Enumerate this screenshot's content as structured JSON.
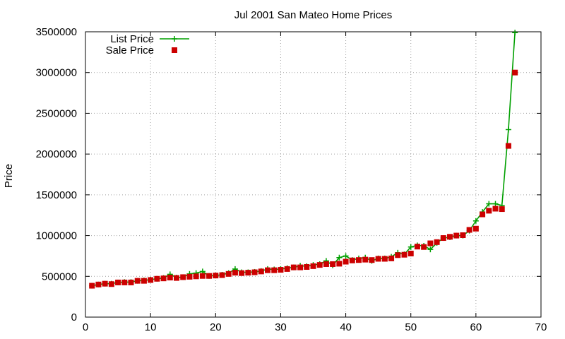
{
  "chart_data": {
    "type": "line",
    "title": "Jul 2001 San Mateo Home Prices",
    "xlabel": "",
    "ylabel": "Price",
    "xlim": [
      0,
      70
    ],
    "ylim": [
      0,
      3500000
    ],
    "x_ticks": [
      0,
      10,
      20,
      30,
      40,
      50,
      60,
      70
    ],
    "y_ticks": [
      0,
      500000,
      1000000,
      1500000,
      2000000,
      2500000,
      3000000,
      3500000
    ],
    "grid": true,
    "legend_position": "top-left",
    "series": [
      {
        "name": "List Price",
        "style": "line-plus",
        "color": "#00a000",
        "values": [
          [
            1,
            385000
          ],
          [
            2,
            400000
          ],
          [
            3,
            410000
          ],
          [
            4,
            410000
          ],
          [
            5,
            425000
          ],
          [
            6,
            430000
          ],
          [
            7,
            430000
          ],
          [
            8,
            445000
          ],
          [
            9,
            450000
          ],
          [
            10,
            460000
          ],
          [
            11,
            470000
          ],
          [
            12,
            480000
          ],
          [
            13,
            525000
          ],
          [
            14,
            485000
          ],
          [
            15,
            490000
          ],
          [
            16,
            530000
          ],
          [
            17,
            540000
          ],
          [
            18,
            560000
          ],
          [
            19,
            505000
          ],
          [
            20,
            510000
          ],
          [
            21,
            520000
          ],
          [
            22,
            540000
          ],
          [
            23,
            590000
          ],
          [
            24,
            550000
          ],
          [
            25,
            550000
          ],
          [
            26,
            555000
          ],
          [
            27,
            565000
          ],
          [
            28,
            590000
          ],
          [
            29,
            585000
          ],
          [
            30,
            590000
          ],
          [
            31,
            600000
          ],
          [
            32,
            610000
          ],
          [
            33,
            630000
          ],
          [
            34,
            625000
          ],
          [
            35,
            640000
          ],
          [
            36,
            650000
          ],
          [
            37,
            690000
          ],
          [
            38,
            635000
          ],
          [
            39,
            730000
          ],
          [
            40,
            750000
          ],
          [
            41,
            700000
          ],
          [
            42,
            720000
          ],
          [
            43,
            730000
          ],
          [
            44,
            690000
          ],
          [
            45,
            720000
          ],
          [
            46,
            720000
          ],
          [
            47,
            740000
          ],
          [
            48,
            790000
          ],
          [
            49,
            770000
          ],
          [
            50,
            860000
          ],
          [
            51,
            880000
          ],
          [
            52,
            875000
          ],
          [
            53,
            830000
          ],
          [
            54,
            910000
          ],
          [
            55,
            970000
          ],
          [
            56,
            980000
          ],
          [
            57,
            1000000
          ],
          [
            58,
            1000000
          ],
          [
            59,
            1060000
          ],
          [
            60,
            1180000
          ],
          [
            61,
            1290000
          ],
          [
            62,
            1390000
          ],
          [
            63,
            1390000
          ],
          [
            64,
            1370000
          ],
          [
            65,
            2300000
          ],
          [
            66,
            3490000
          ]
        ]
      },
      {
        "name": "Sale Price",
        "style": "points-square",
        "color": "#cc0000",
        "values": [
          [
            1,
            385000
          ],
          [
            2,
            400000
          ],
          [
            3,
            410000
          ],
          [
            4,
            405000
          ],
          [
            5,
            425000
          ],
          [
            6,
            425000
          ],
          [
            7,
            425000
          ],
          [
            8,
            445000
          ],
          [
            9,
            445000
          ],
          [
            10,
            455000
          ],
          [
            11,
            470000
          ],
          [
            12,
            475000
          ],
          [
            13,
            485000
          ],
          [
            14,
            480000
          ],
          [
            15,
            490000
          ],
          [
            16,
            495000
          ],
          [
            17,
            500000
          ],
          [
            18,
            505000
          ],
          [
            19,
            505000
          ],
          [
            20,
            510000
          ],
          [
            21,
            515000
          ],
          [
            22,
            530000
          ],
          [
            23,
            545000
          ],
          [
            24,
            540000
          ],
          [
            25,
            545000
          ],
          [
            26,
            550000
          ],
          [
            27,
            560000
          ],
          [
            28,
            575000
          ],
          [
            29,
            575000
          ],
          [
            30,
            580000
          ],
          [
            31,
            590000
          ],
          [
            32,
            610000
          ],
          [
            33,
            610000
          ],
          [
            34,
            615000
          ],
          [
            35,
            625000
          ],
          [
            36,
            640000
          ],
          [
            37,
            650000
          ],
          [
            38,
            650000
          ],
          [
            39,
            655000
          ],
          [
            40,
            680000
          ],
          [
            41,
            695000
          ],
          [
            42,
            700000
          ],
          [
            43,
            705000
          ],
          [
            44,
            700000
          ],
          [
            45,
            715000
          ],
          [
            46,
            715000
          ],
          [
            47,
            720000
          ],
          [
            48,
            760000
          ],
          [
            49,
            765000
          ],
          [
            50,
            780000
          ],
          [
            51,
            865000
          ],
          [
            52,
            860000
          ],
          [
            53,
            905000
          ],
          [
            54,
            920000
          ],
          [
            55,
            970000
          ],
          [
            56,
            985000
          ],
          [
            57,
            1000000
          ],
          [
            58,
            1005000
          ],
          [
            59,
            1070000
          ],
          [
            60,
            1085000
          ],
          [
            61,
            1260000
          ],
          [
            62,
            1305000
          ],
          [
            63,
            1330000
          ],
          [
            64,
            1325000
          ],
          [
            65,
            2100000
          ],
          [
            66,
            3000000
          ]
        ]
      }
    ]
  }
}
